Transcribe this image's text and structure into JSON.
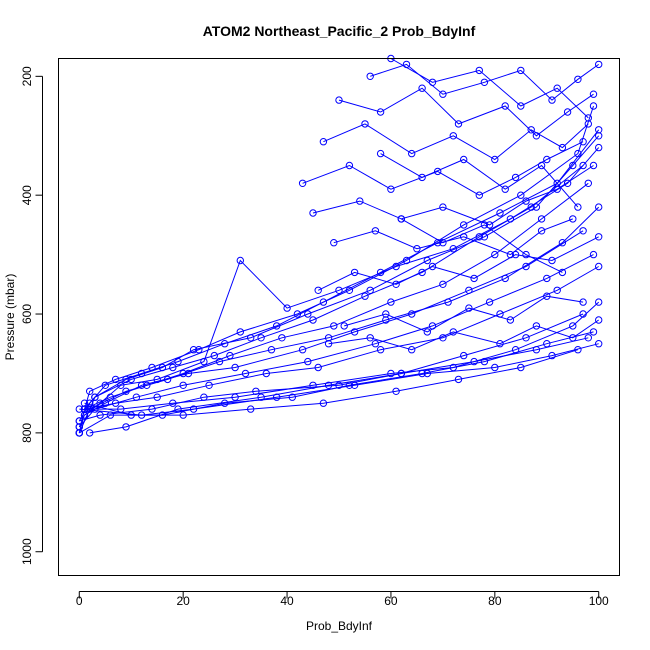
{
  "chart_data": {
    "type": "scatter",
    "title": "ATOM2 Northeast_Pacific_2 Prob_BdyInf",
    "xlabel": "Prob_BdyInf",
    "ylabel": "Pressure (mbar)",
    "xlim": [
      -4,
      104
    ],
    "ylim": [
      1040,
      170
    ],
    "y_reversed": true,
    "x_ticks": [
      0,
      20,
      40,
      60,
      80,
      100
    ],
    "y_ticks": [
      200,
      400,
      600,
      800,
      1000
    ],
    "grid": false,
    "legend": "none",
    "marker": "open-circle",
    "color": "#0000ff",
    "series": [
      {
        "x": [
          0,
          1,
          3,
          9,
          16,
          22,
          33,
          44,
          56,
          67,
          78,
          88,
          95,
          100
        ],
        "y": [
          800,
          760,
          740,
          710,
          690,
          660,
          640,
          600,
          560,
          510,
          470,
          420,
          350,
          300
        ]
      },
      {
        "x": [
          0,
          2,
          5,
          12,
          19,
          28,
          38,
          47,
          58,
          69,
          81,
          92,
          100
        ],
        "y": [
          780,
          750,
          720,
          700,
          680,
          650,
          620,
          580,
          530,
          480,
          430,
          380,
          290
        ]
      },
      {
        "x": [
          1,
          2,
          7,
          14,
          23,
          31,
          42,
          52,
          63,
          74,
          85,
          96,
          99
        ],
        "y": [
          760,
          730,
          710,
          690,
          660,
          630,
          600,
          560,
          510,
          450,
          400,
          330,
          250
        ]
      },
      {
        "x": [
          0,
          3,
          10,
          18,
          26,
          35,
          45,
          55,
          66,
          77,
          87,
          97
        ],
        "y": [
          800,
          740,
          710,
          690,
          670,
          640,
          610,
          570,
          530,
          470,
          420,
          350
        ]
      },
      {
        "x": [
          0,
          1,
          4,
          8,
          15,
          24,
          31,
          40,
          50,
          61,
          72,
          83,
          94,
          100
        ],
        "y": [
          790,
          770,
          750,
          720,
          710,
          680,
          510,
          590,
          560,
          520,
          490,
          440,
          380,
          320
        ]
      },
      {
        "x": [
          1,
          6,
          13,
          20,
          29,
          39,
          49,
          60,
          70,
          80,
          89,
          98
        ],
        "y": [
          760,
          740,
          720,
          700,
          670,
          640,
          620,
          580,
          550,
          500,
          440,
          380
        ]
      },
      {
        "x": [
          0,
          2,
          9,
          17,
          27,
          37,
          48,
          59,
          71,
          82,
          93,
          100
        ],
        "y": [
          800,
          760,
          730,
          710,
          680,
          660,
          640,
          610,
          580,
          540,
          480,
          420
        ]
      },
      {
        "x": [
          1,
          5,
          12,
          21,
          30,
          43,
          53,
          64,
          75,
          86,
          97
        ],
        "y": [
          770,
          750,
          720,
          700,
          690,
          660,
          630,
          600,
          560,
          520,
          460
        ]
      },
      {
        "x": [
          0,
          3,
          11,
          20,
          32,
          44,
          57,
          68,
          79,
          90,
          99
        ],
        "y": [
          790,
          760,
          740,
          720,
          700,
          680,
          650,
          620,
          580,
          540,
          500
        ]
      },
      {
        "x": [
          1,
          7,
          15,
          25,
          36,
          46,
          58,
          70,
          81,
          92,
          100
        ],
        "y": [
          760,
          750,
          740,
          720,
          700,
          690,
          660,
          640,
          600,
          560,
          520
        ]
      },
      {
        "x": [
          0,
          4,
          14,
          24,
          34,
          50,
          62,
          74,
          86,
          97
        ],
        "y": [
          780,
          770,
          760,
          740,
          730,
          720,
          700,
          670,
          640,
          600
        ]
      },
      {
        "x": [
          1,
          8,
          18,
          30,
          45,
          60,
          72,
          84,
          95,
          100
        ],
        "y": [
          760,
          760,
          750,
          740,
          720,
          700,
          690,
          660,
          620,
          580
        ]
      },
      {
        "x": [
          0,
          6,
          16,
          28,
          41,
          52,
          66,
          78,
          90,
          99
        ],
        "y": [
          800,
          770,
          770,
          750,
          740,
          720,
          700,
          680,
          650,
          630
        ]
      },
      {
        "x": [
          2,
          9,
          19,
          35,
          48,
          62,
          76,
          88,
          98
        ],
        "y": [
          800,
          790,
          760,
          740,
          720,
          700,
          680,
          660,
          640
        ]
      },
      {
        "x": [
          0,
          12,
          22,
          38,
          53,
          67,
          80,
          91,
          100
        ],
        "y": [
          760,
          770,
          760,
          740,
          720,
          700,
          690,
          670,
          650
        ]
      },
      {
        "x": [
          1,
          10,
          20,
          33,
          47,
          61,
          73,
          85,
          96
        ],
        "y": [
          750,
          770,
          770,
          760,
          750,
          730,
          710,
          690,
          660
        ]
      },
      {
        "x": [
          56,
          63,
          70,
          78,
          85,
          91,
          96,
          100
        ],
        "y": [
          200,
          180,
          230,
          210,
          190,
          240,
          205,
          180
        ]
      },
      {
        "x": [
          50,
          58,
          66,
          73,
          82,
          88,
          94,
          99
        ],
        "y": [
          240,
          260,
          220,
          280,
          250,
          300,
          260,
          230
        ]
      },
      {
        "x": [
          47,
          55,
          64,
          72,
          80,
          87,
          93,
          98
        ],
        "y": [
          310,
          280,
          330,
          300,
          340,
          290,
          320,
          280
        ]
      },
      {
        "x": [
          43,
          52,
          60,
          69,
          77,
          84,
          90,
          97
        ],
        "y": [
          380,
          350,
          390,
          360,
          400,
          370,
          340,
          310
        ]
      },
      {
        "x": [
          45,
          54,
          62,
          70,
          79,
          86,
          92,
          99
        ],
        "y": [
          430,
          410,
          440,
          420,
          450,
          410,
          390,
          350
        ]
      },
      {
        "x": [
          49,
          57,
          65,
          74,
          83,
          89,
          95
        ],
        "y": [
          480,
          460,
          490,
          470,
          500,
          460,
          440
        ]
      },
      {
        "x": [
          46,
          53,
          61,
          68,
          76,
          84,
          91,
          100
        ],
        "y": [
          560,
          530,
          550,
          520,
          540,
          500,
          510,
          470
        ]
      },
      {
        "x": [
          51,
          59,
          67,
          75,
          83,
          90,
          97
        ],
        "y": [
          620,
          600,
          630,
          590,
          610,
          570,
          580
        ]
      },
      {
        "x": [
          48,
          56,
          64,
          72,
          81,
          88,
          95,
          100
        ],
        "y": [
          650,
          640,
          660,
          630,
          650,
          620,
          640,
          610
        ]
      },
      {
        "x": [
          60,
          68,
          77,
          85,
          92,
          98
        ],
        "y": [
          170,
          210,
          190,
          250,
          220,
          270
        ]
      },
      {
        "x": [
          58,
          66,
          74,
          82,
          89,
          96
        ],
        "y": [
          330,
          370,
          340,
          390,
          350,
          420
        ]
      },
      {
        "x": [
          62,
          70,
          78,
          86,
          93
        ],
        "y": [
          440,
          480,
          450,
          500,
          530
        ]
      }
    ]
  }
}
